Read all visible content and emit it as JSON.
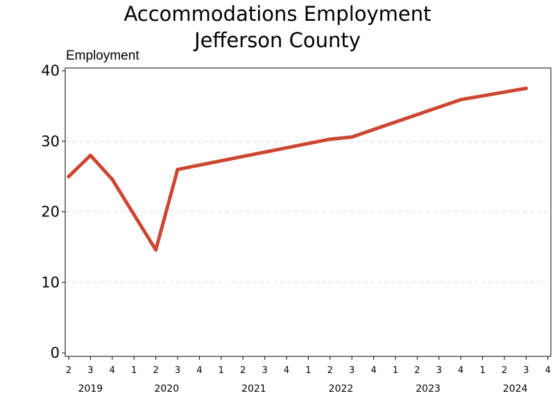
{
  "chart_data": {
    "type": "line",
    "title": "Accommodations Employment",
    "subtitle": "Jefferson County",
    "ylabel": "Employment",
    "xlabel": "",
    "ylim": [
      0,
      40
    ],
    "yticks": [
      0,
      10,
      20,
      30,
      40
    ],
    "grid": true,
    "legend": "none",
    "categories": [
      "2",
      "3",
      "4",
      "1",
      "2",
      "3",
      "4",
      "1",
      "2",
      "3",
      "4",
      "1",
      "2",
      "3",
      "4",
      "1",
      "2",
      "3",
      "4",
      "1",
      "2",
      "3",
      "4"
    ],
    "year_labels": [
      {
        "label": "2019",
        "start": 0,
        "end": 2
      },
      {
        "label": "2020",
        "start": 3,
        "end": 6
      },
      {
        "label": "2021",
        "start": 7,
        "end": 10
      },
      {
        "label": "2022",
        "start": 11,
        "end": 14
      },
      {
        "label": "2023",
        "start": 15,
        "end": 18
      },
      {
        "label": "2024",
        "start": 19,
        "end": 22
      }
    ],
    "series": [
      {
        "color": "#cd4631",
        "values": [
          25.0,
          28.0,
          24.6,
          null,
          14.6,
          26.0,
          null,
          null,
          null,
          null,
          null,
          null,
          30.3,
          30.6,
          null,
          null,
          null,
          null,
          35.9,
          null,
          null,
          37.5,
          null
        ]
      }
    ]
  }
}
